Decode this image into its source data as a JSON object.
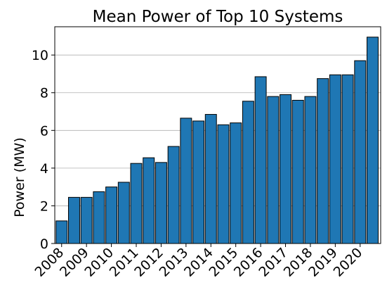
{
  "chart_data": {
    "type": "bar",
    "title": "Mean Power of Top 10 Systems",
    "xlabel": "",
    "ylabel": "Power (MW)",
    "ylim": [
      0,
      11.5
    ],
    "yticks": [
      0,
      2,
      4,
      6,
      8,
      10
    ],
    "grid": "y",
    "bar_color": "#1f77b4",
    "edge_color": "#000000",
    "x_tick_labels": [
      "2008",
      "2009",
      "2010",
      "2011",
      "2012",
      "2013",
      "2014",
      "2015",
      "2016",
      "2017",
      "2018",
      "2019",
      "2020"
    ],
    "values": [
      1.2,
      2.45,
      2.45,
      2.75,
      3.0,
      3.25,
      4.25,
      4.55,
      4.3,
      5.15,
      6.65,
      6.5,
      6.85,
      6.3,
      6.4,
      7.55,
      8.85,
      7.8,
      7.9,
      7.6,
      7.8,
      8.75,
      8.95,
      8.95,
      9.7,
      10.95
    ]
  }
}
